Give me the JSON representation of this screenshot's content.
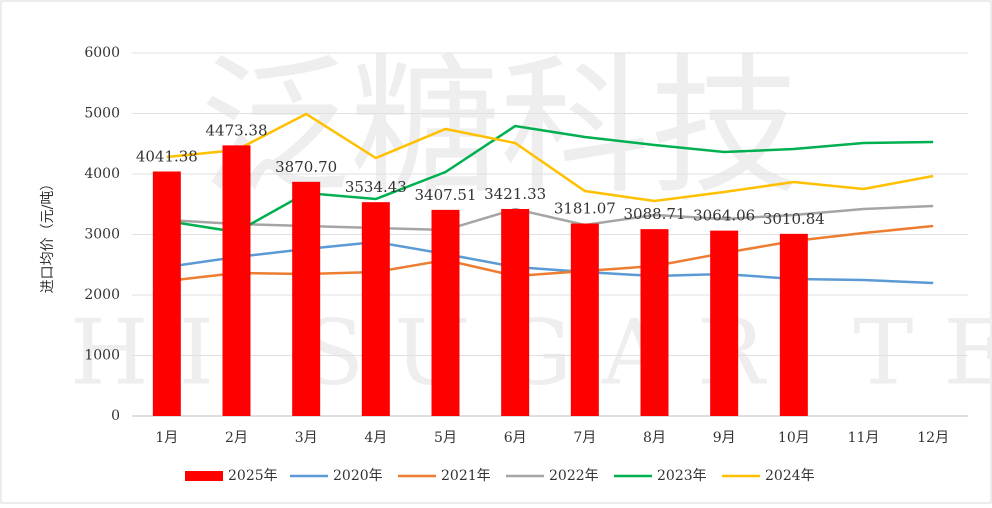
{
  "chart_data": {
    "type": "bar-line",
    "y_label": "进口均价（元/吨）",
    "watermark": [
      "泛糖科技",
      "HI SUGAR TECH"
    ],
    "categories": [
      "1月",
      "2月",
      "3月",
      "4月",
      "5月",
      "6月",
      "7月",
      "8月",
      "9月",
      "10月",
      "11月",
      "12月"
    ],
    "ylim": [
      0,
      6000
    ],
    "yticks": [
      0,
      1000,
      2000,
      3000,
      4000,
      5000,
      6000
    ],
    "grid": true,
    "legend": "bottom",
    "series": [
      {
        "name": "2025年",
        "type": "bar",
        "color": "#ff0000",
        "values": [
          4041.38,
          4473.38,
          3870.7,
          3534.43,
          3407.51,
          3421.33,
          3181.07,
          3088.71,
          3064.06,
          3010.84,
          null,
          null
        ],
        "value_labels": [
          "4041.38",
          "4473.38",
          "3870.70",
          "3534.43",
          "3407.51",
          "3421.33",
          "3181.07",
          "3088.71",
          "3064.06",
          "3010.84",
          null,
          null
        ]
      },
      {
        "name": "2020年",
        "type": "line",
        "color": "#5b9bd5",
        "values": [
          2463,
          2628,
          2760,
          2876,
          2678,
          2463,
          2380,
          2314,
          2347,
          2264,
          2248,
          2198
        ]
      },
      {
        "name": "2021年",
        "type": "line",
        "color": "#ed7d31",
        "values": [
          2231,
          2364,
          2347,
          2380,
          2579,
          2314,
          2397,
          2479,
          2694,
          2893,
          3025,
          3140
        ]
      },
      {
        "name": "2022年",
        "type": "line",
        "color": "#a5a5a5",
        "values": [
          3240,
          3174,
          3140,
          3107,
          3074,
          3421,
          3157,
          3322,
          3256,
          3322,
          3421,
          3471
        ]
      },
      {
        "name": "2023年",
        "type": "line",
        "color": "#00b050",
        "values": [
          3223,
          3041,
          3686,
          3587,
          4033,
          4793,
          4612,
          4479,
          4364,
          4413,
          4512,
          4529
        ]
      },
      {
        "name": "2024年",
        "type": "line",
        "color": "#ffc000",
        "values": [
          4281,
          4397,
          4992,
          4264,
          4744,
          4512,
          3719,
          3554,
          3702,
          3868,
          3752,
          3967
        ]
      }
    ]
  }
}
